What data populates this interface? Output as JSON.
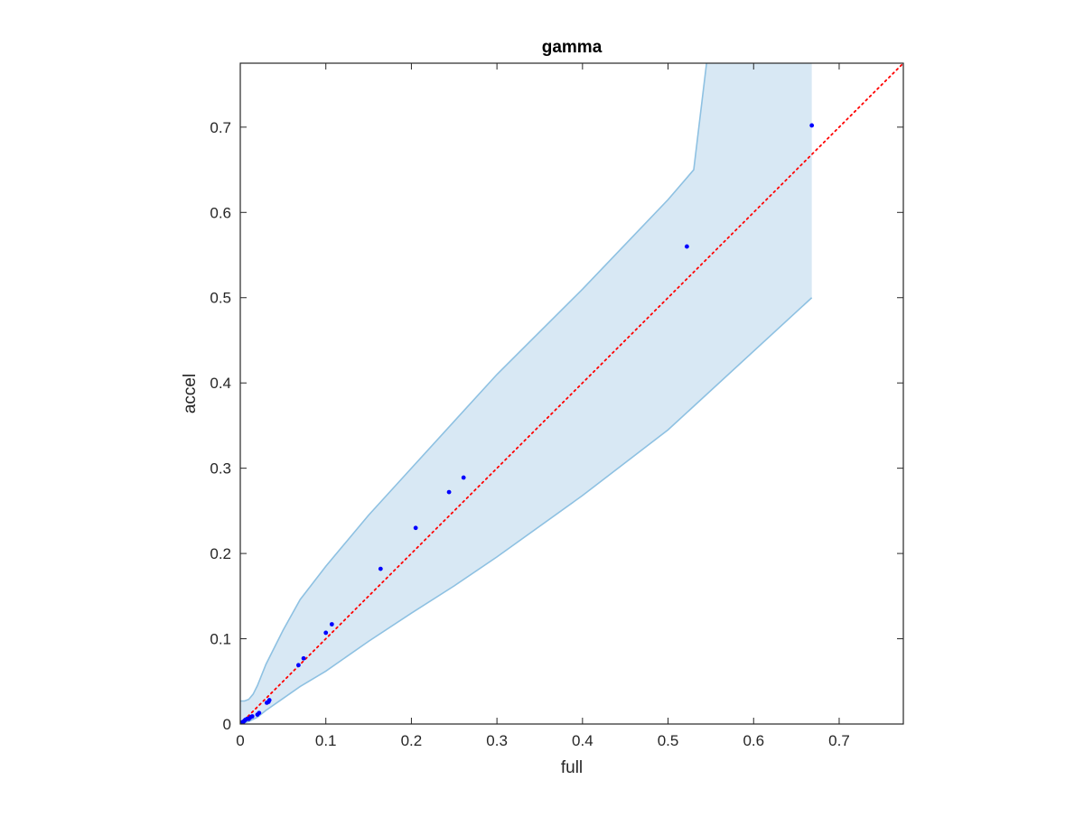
{
  "chart_data": {
    "type": "scatter",
    "title": "gamma",
    "xlabel": "full",
    "ylabel": "accel",
    "xlim": [
      0,
      0.775
    ],
    "ylim": [
      0,
      0.775
    ],
    "xticks": [
      0,
      0.1,
      0.2,
      0.3,
      0.4,
      0.5,
      0.6,
      0.7
    ],
    "yticks": [
      0,
      0.1,
      0.2,
      0.3,
      0.4,
      0.5,
      0.6,
      0.7
    ],
    "xtick_labels": [
      "0",
      "0.1",
      "0.2",
      "0.3",
      "0.4",
      "0.5",
      "0.6",
      "0.7"
    ],
    "ytick_labels": [
      "0",
      "0.1",
      "0.2",
      "0.3",
      "0.4",
      "0.5",
      "0.6",
      "0.7"
    ],
    "grid": false,
    "box": true,
    "points": {
      "x": [
        0.001,
        0.002,
        0.003,
        0.004,
        0.005,
        0.006,
        0.008,
        0.01,
        0.012,
        0.014,
        0.02,
        0.022,
        0.031,
        0.033,
        0.034,
        0.068,
        0.074,
        0.1,
        0.107,
        0.164,
        0.205,
        0.244,
        0.261,
        0.522,
        0.668
      ],
      "y": [
        0.001,
        0.002,
        0.002,
        0.003,
        0.004,
        0.005,
        0.006,
        0.006,
        0.008,
        0.009,
        0.011,
        0.013,
        0.025,
        0.026,
        0.028,
        0.069,
        0.077,
        0.107,
        0.117,
        0.182,
        0.23,
        0.272,
        0.289,
        0.56,
        0.702
      ],
      "color": "#0000ff"
    },
    "reference_line": {
      "style": "dotted",
      "color": "#ff0000",
      "from": [
        0,
        0
      ],
      "to": [
        0.775,
        0.775
      ]
    },
    "band": {
      "fill": "#d8e8f4",
      "edge": "#8ec1e2",
      "upper": {
        "x": [
          0,
          0.005,
          0.01,
          0.015,
          0.02,
          0.03,
          0.05,
          0.07,
          0.1,
          0.15,
          0.2,
          0.25,
          0.3,
          0.4,
          0.5,
          0.53,
          0.545
        ],
        "y": [
          0.027,
          0.027,
          0.029,
          0.035,
          0.045,
          0.07,
          0.11,
          0.146,
          0.185,
          0.245,
          0.3,
          0.355,
          0.41,
          0.51,
          0.615,
          0.65,
          0.775
        ]
      },
      "upper_flat": {
        "x": [
          0.545,
          0.668
        ],
        "y": [
          0.775,
          0.775
        ]
      },
      "lower": {
        "x": [
          0,
          0.01,
          0.02,
          0.03,
          0.05,
          0.07,
          0.1,
          0.15,
          0.2,
          0.25,
          0.3,
          0.4,
          0.5,
          0.668
        ],
        "y": [
          0,
          0.003,
          0.008,
          0.016,
          0.03,
          0.044,
          0.062,
          0.097,
          0.13,
          0.162,
          0.196,
          0.268,
          0.345,
          0.5
        ]
      }
    }
  }
}
